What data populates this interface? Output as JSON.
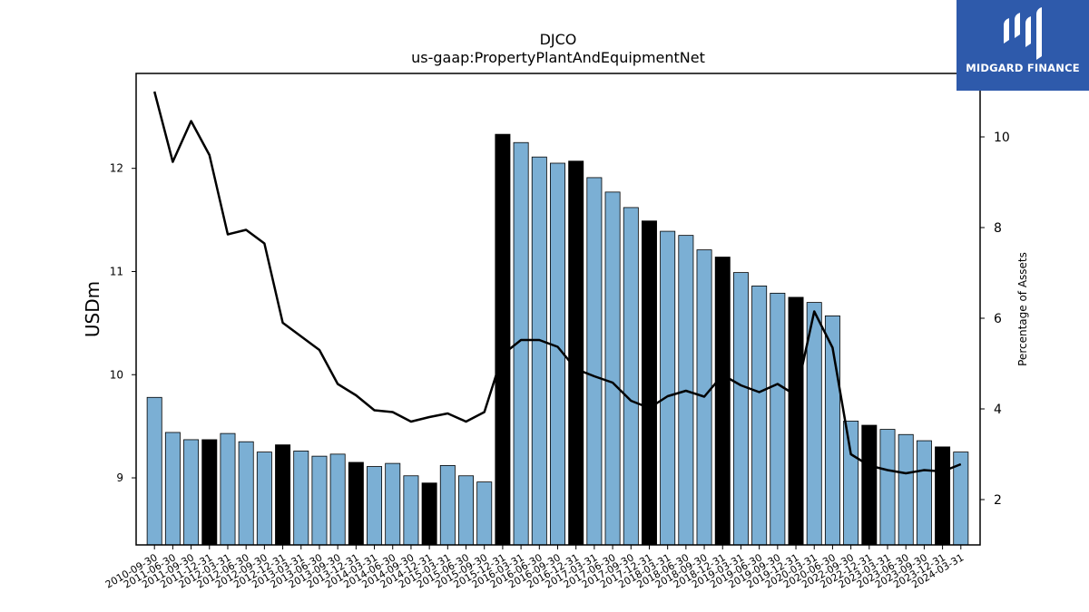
{
  "chart_data": {
    "type": "bar",
    "title": "DJCO",
    "subtitle": "us-gaap:PropertyPlantAndEquipmentNet",
    "ylabel": "USDm",
    "y2label": "Percentage of Assets",
    "ylim": [
      8.35,
      12.92
    ],
    "y2lim": [
      1.0,
      11.4
    ],
    "yticks": [
      9,
      10,
      11,
      12
    ],
    "y2ticks": [
      2,
      4,
      6,
      8,
      10
    ],
    "categories": [
      "2010-09-30",
      "2011-06-30",
      "2011-09-30",
      "2011-12-31",
      "2012-03-31",
      "2012-06-30",
      "2012-09-30",
      "2012-12-31",
      "2013-03-31",
      "2013-06-30",
      "2013-09-30",
      "2013-12-31",
      "2014-03-31",
      "2014-06-30",
      "2014-09-30",
      "2014-12-31",
      "2015-03-31",
      "2015-06-30",
      "2015-09-30",
      "2015-12-31",
      "2016-03-31",
      "2016-06-30",
      "2016-09-30",
      "2016-12-31",
      "2017-03-31",
      "2017-06-30",
      "2017-09-30",
      "2017-12-31",
      "2018-03-31",
      "2018-06-30",
      "2018-09-30",
      "2018-12-31",
      "2019-03-31",
      "2019-06-30",
      "2019-09-30",
      "2019-12-31",
      "2020-03-31",
      "2020-06-30",
      "2022-09-30",
      "2022-12-31",
      "2023-03-31",
      "2023-06-30",
      "2023-09-30",
      "2023-12-31",
      "2024-03-31"
    ],
    "series": [
      {
        "name": "",
        "type": "bar",
        "values": [
          9.78,
          9.44,
          9.37,
          9.37,
          9.43,
          9.35,
          9.25,
          9.32,
          9.26,
          9.21,
          9.23,
          9.15,
          9.11,
          9.14,
          9.02,
          8.95,
          9.12,
          9.02,
          8.96,
          12.33,
          12.25,
          12.11,
          12.05,
          12.07,
          11.91,
          11.77,
          11.62,
          11.49,
          11.39,
          11.35,
          11.21,
          11.14,
          10.99,
          10.86,
          10.79,
          10.75,
          10.7,
          10.57,
          9.55,
          9.51,
          9.47,
          9.42,
          9.36,
          9.3,
          9.25
        ],
        "highlight": [
          false,
          false,
          false,
          true,
          false,
          false,
          false,
          true,
          false,
          false,
          false,
          true,
          false,
          false,
          false,
          true,
          false,
          false,
          false,
          true,
          false,
          false,
          false,
          true,
          false,
          false,
          false,
          true,
          false,
          false,
          false,
          true,
          false,
          false,
          false,
          true,
          false,
          false,
          false,
          true,
          false,
          false,
          false,
          true,
          false
        ]
      },
      {
        "name": "",
        "type": "line",
        "axis": "right",
        "values": [
          11.0,
          9.45,
          10.35,
          9.6,
          7.85,
          7.95,
          7.65,
          5.9,
          5.6,
          5.3,
          4.55,
          4.3,
          3.97,
          3.93,
          3.72,
          3.82,
          3.9,
          3.72,
          3.93,
          5.2,
          5.52,
          5.52,
          5.37,
          4.88,
          4.72,
          4.58,
          4.18,
          4.02,
          4.28,
          4.4,
          4.27,
          4.75,
          4.52,
          4.37,
          4.55,
          4.3,
          6.15,
          5.35,
          3.0,
          2.75,
          2.65,
          2.58,
          2.65,
          2.62,
          2.78
        ]
      }
    ],
    "colors": {
      "bar": "#7bafd4",
      "bar_highlight": "#000000",
      "line": "#000000"
    },
    "legend": "none",
    "grid": false
  },
  "branding": {
    "name": "MIDGARD FINANCE",
    "bg": "#2e5aab"
  }
}
